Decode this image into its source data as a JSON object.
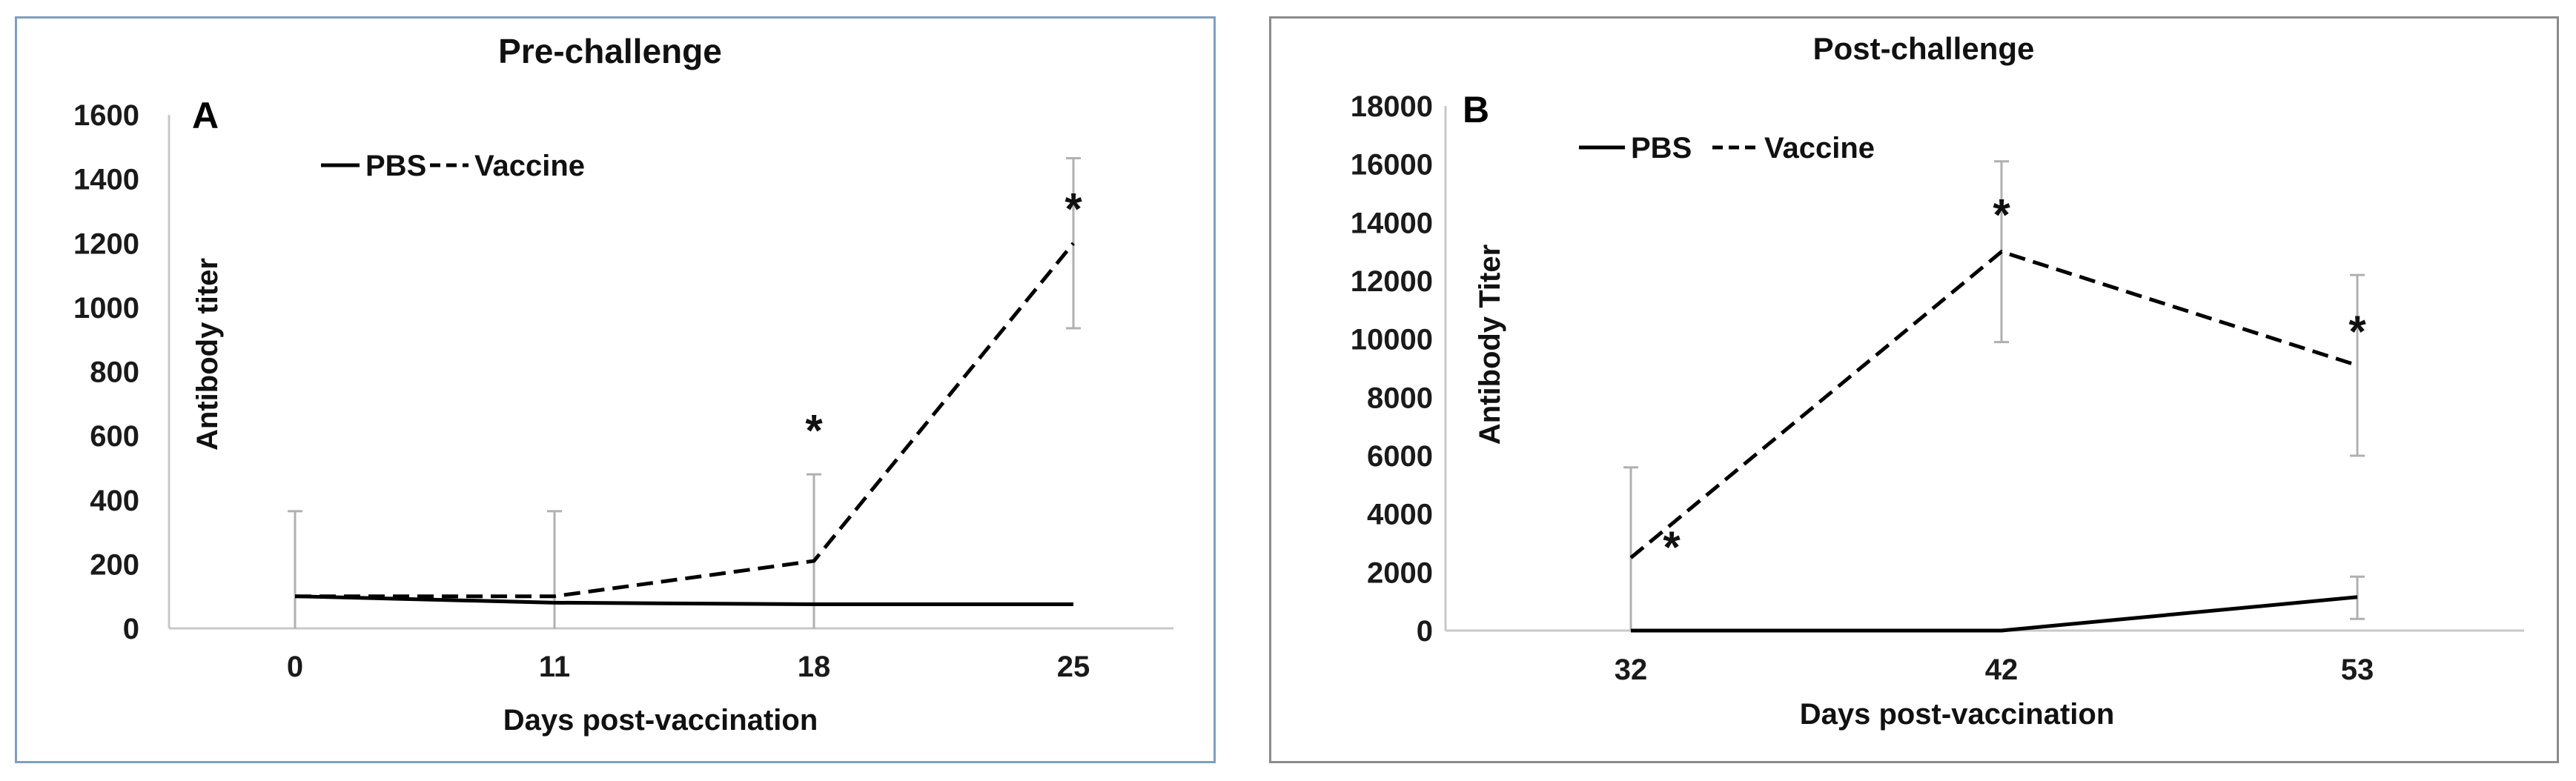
{
  "chart_data": [
    {
      "type": "line",
      "panel_letter": "A",
      "title": "Pre-challenge",
      "xlabel": "Days post-vaccination",
      "ylabel": "Antibody titer",
      "categories": [
        "0",
        "11",
        "18",
        "25"
      ],
      "ylim": [
        0,
        1600
      ],
      "yticks": [
        "0",
        "200",
        "400",
        "600",
        "800",
        "1000",
        "1200",
        "1400",
        "1600"
      ],
      "series": [
        {
          "name": "PBS",
          "style": "solid",
          "values": [
            100,
            80,
            75,
            75
          ]
        },
        {
          "name": "Vaccine",
          "style": "dashed",
          "values": [
            100,
            100,
            210,
            1200
          ],
          "error_upper": [
            365,
            365,
            480,
            1465
          ],
          "error_lower": [
            0,
            0,
            0,
            935
          ]
        }
      ],
      "annotations": [
        {
          "text": "*",
          "category": "18",
          "y": 620
        },
        {
          "text": "*",
          "category": "25",
          "y": 1310
        }
      ],
      "legend_position": "top-left",
      "grid": false,
      "colors": {
        "line": "#000000",
        "error_bar": "#b0b0b0",
        "border": "#7f9fc3"
      }
    },
    {
      "type": "line",
      "panel_letter": "B",
      "title": "Post-challenge",
      "xlabel": "Days post-vaccination",
      "ylabel": "Antibody Titer",
      "categories": [
        "32",
        "42",
        "53"
      ],
      "ylim": [
        0,
        18000
      ],
      "yticks": [
        "0",
        "2000",
        "4000",
        "6000",
        "8000",
        "10000",
        "12000",
        "14000",
        "16000",
        "18000"
      ],
      "series": [
        {
          "name": "PBS",
          "style": "solid",
          "values": [
            0,
            0,
            1150
          ],
          "error_upper": [
            null,
            null,
            1850
          ],
          "error_lower": [
            null,
            null,
            400
          ]
        },
        {
          "name": "Vaccine",
          "style": "dashed",
          "values": [
            2500,
            13000,
            9100
          ],
          "error_upper": [
            5600,
            16100,
            12200
          ],
          "error_lower": [
            0,
            9900,
            6000
          ]
        }
      ],
      "annotations": [
        {
          "text": "*",
          "category": "32",
          "y": 2900
        },
        {
          "text": "*",
          "category": "42",
          "y": 14300
        },
        {
          "text": "*",
          "category": "53",
          "y": 10300
        }
      ],
      "legend_position": "top-left",
      "grid": false,
      "colors": {
        "line": "#000000",
        "error_bar": "#b0b0b0",
        "border": "#8c8c8c"
      }
    }
  ]
}
